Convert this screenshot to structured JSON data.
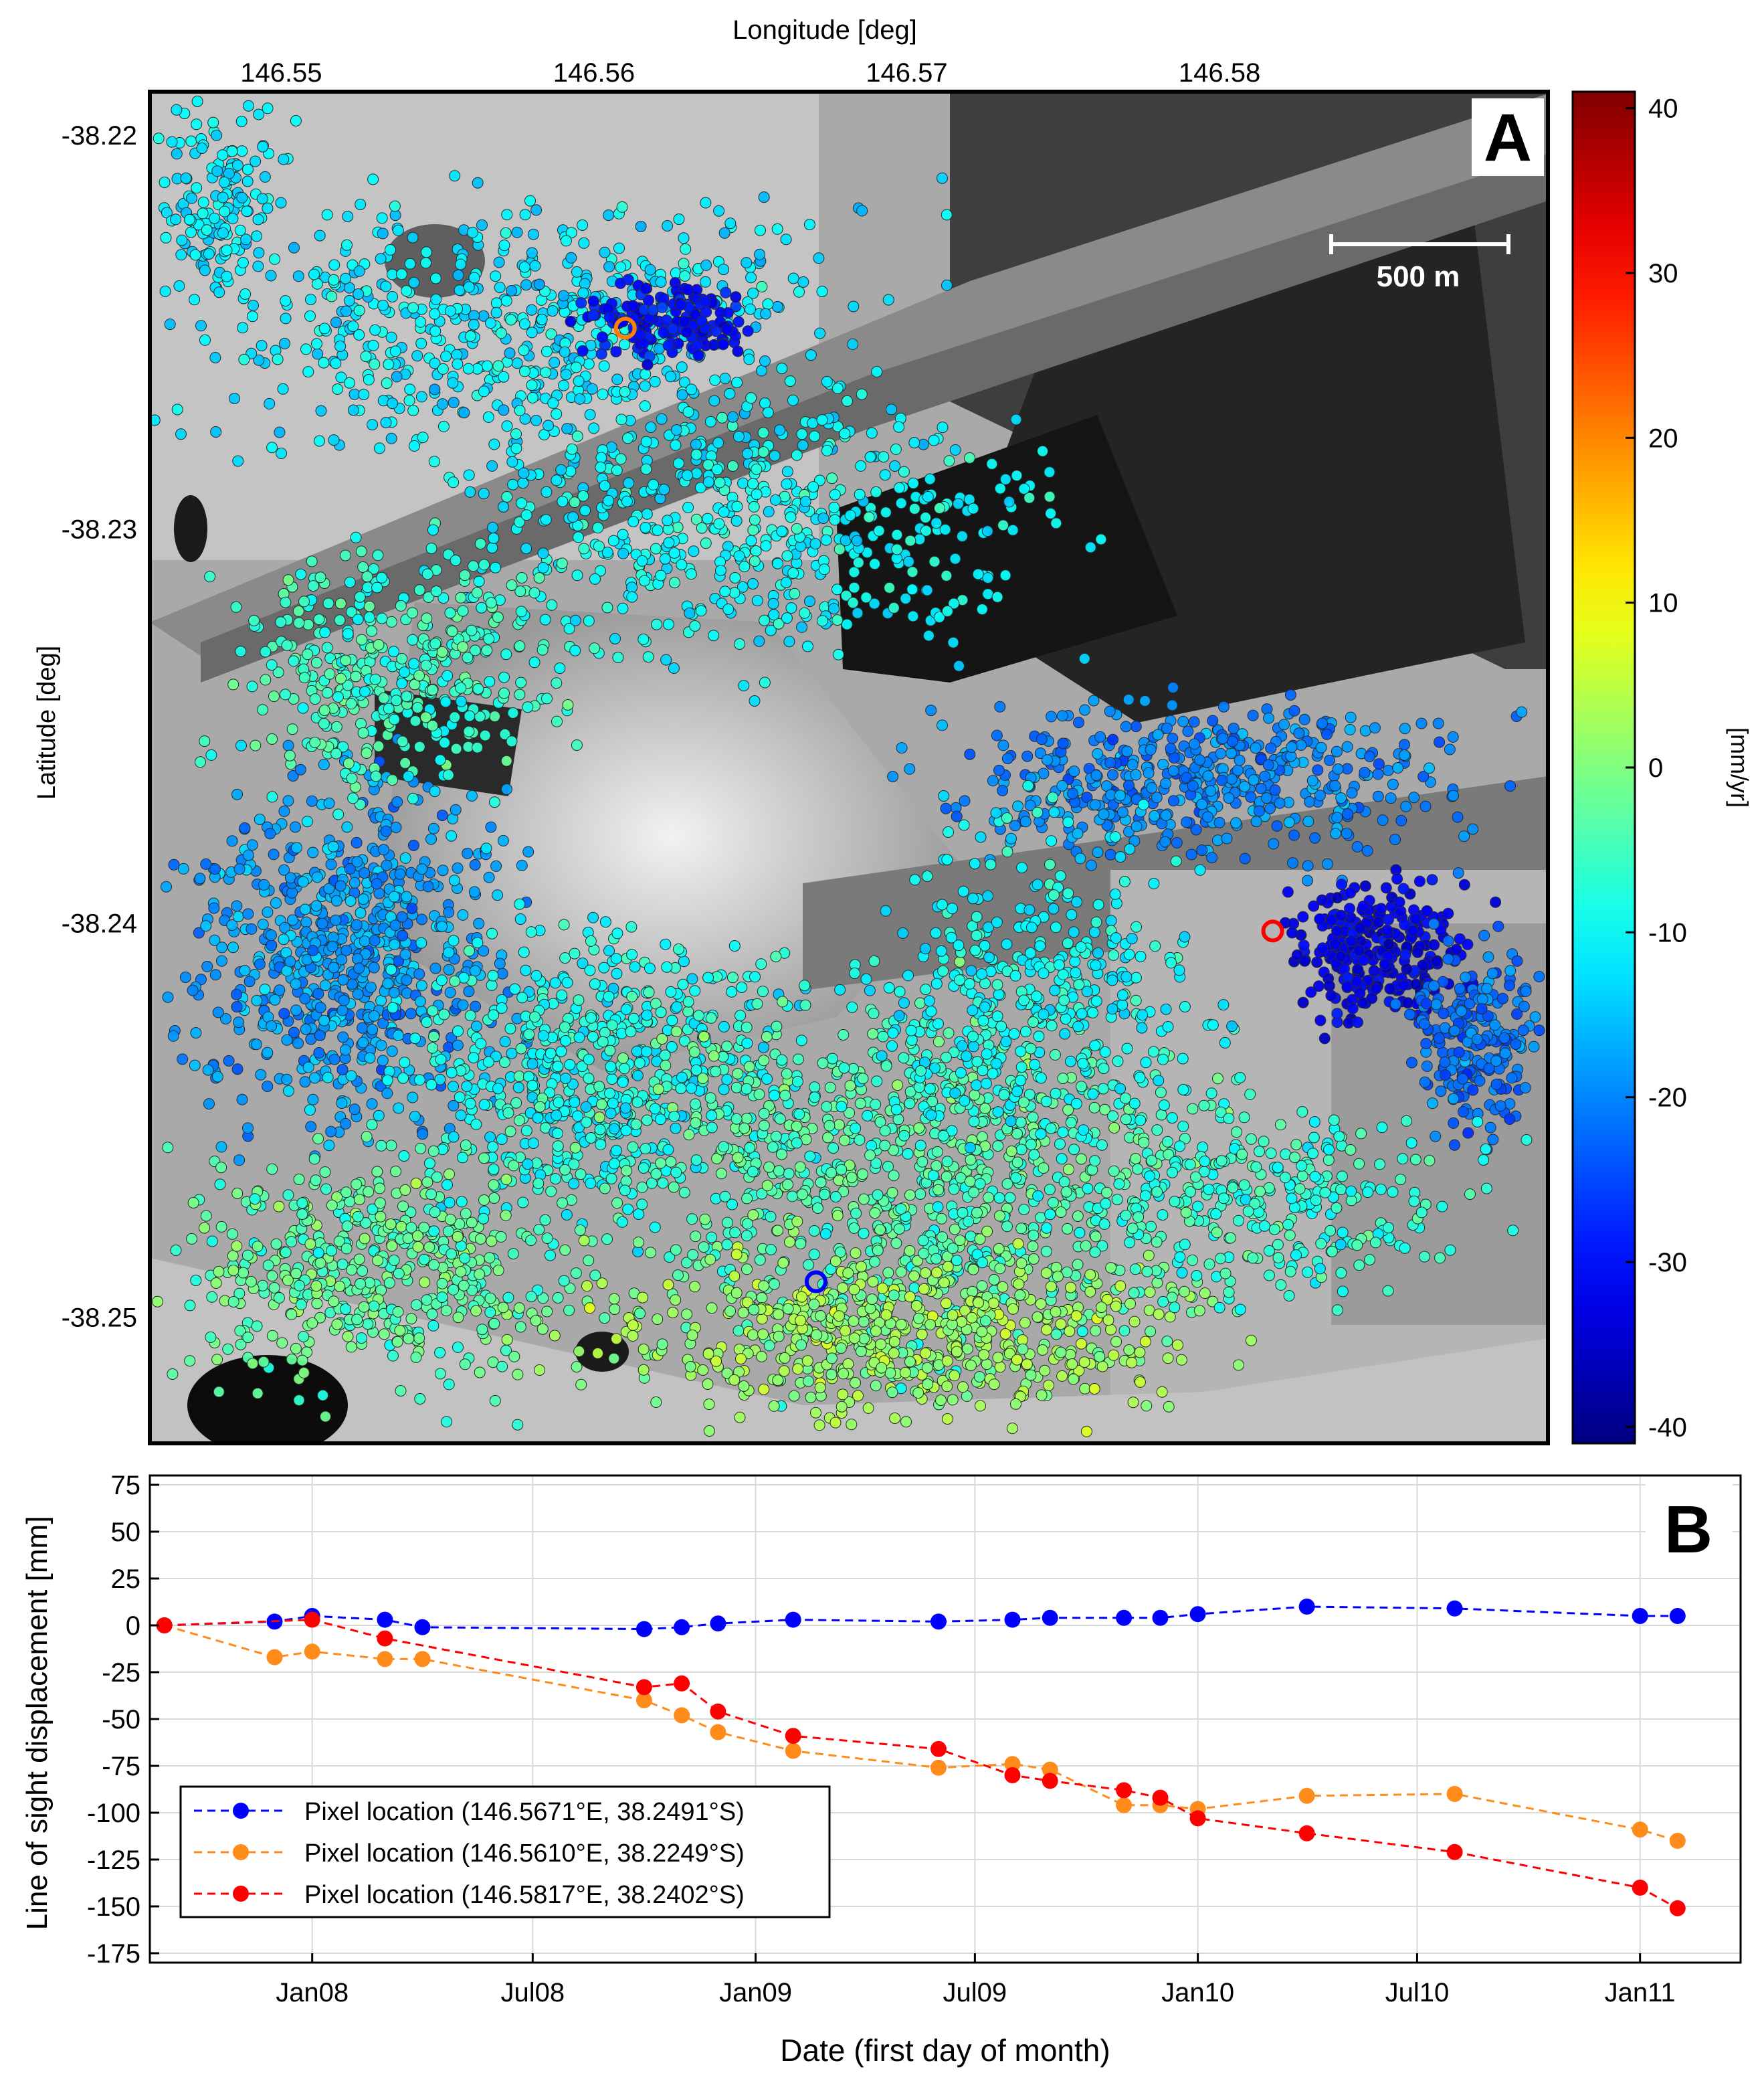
{
  "panel_a": {
    "panel_label": "A",
    "xlabel": "Longitude  [deg]",
    "ylabel": "Latitude  [deg]",
    "x_ticks": [
      "146.55",
      "146.56",
      "146.57",
      "146.58"
    ],
    "x_tick_values": [
      146.55,
      146.56,
      146.57,
      146.58
    ],
    "y_ticks": [
      "-38.22",
      "-38.23",
      "-38.24",
      "-38.25"
    ],
    "y_tick_values": [
      -38.22,
      -38.23,
      -38.24,
      -38.25
    ],
    "xlim": [
      146.5458,
      146.5905
    ],
    "ylim": [
      -38.2532,
      -38.2189
    ],
    "scale_bar_label": "500 m",
    "colorbar": {
      "label": "[mm/yr]",
      "ticks": [
        "40",
        "30",
        "20",
        "10",
        "0",
        "-10",
        "-20",
        "-30",
        "-40"
      ],
      "tick_values": [
        40,
        30,
        20,
        10,
        0,
        -10,
        -20,
        -30,
        -40
      ],
      "range": [
        -41,
        41
      ],
      "colormap": [
        "#00008f",
        "#0000ff",
        "#00ffff",
        "#00ff80",
        "#ffff00",
        "#ff8000",
        "#ff0000",
        "#800000"
      ]
    },
    "marked_pixels": [
      {
        "lon": 146.5671,
        "lat": -38.2491,
        "color": "#0000ff"
      },
      {
        "lon": 146.561,
        "lat": -38.2249,
        "color": "#ff8000"
      },
      {
        "lon": 146.5817,
        "lat": -38.2402,
        "color": "#ff0000"
      }
    ]
  },
  "panel_b": {
    "panel_label": "B",
    "xlabel": "Date (first day of month)",
    "ylabel": "Line of sight displacement [mm]",
    "x_ticks": [
      "Jan08",
      "Jul08",
      "Jan09",
      "Jul09",
      "Jan10",
      "Jul10",
      "Jan11"
    ],
    "x_tick_values": [
      "2008-01-01",
      "2008-07-01",
      "2009-01-01",
      "2009-07-01",
      "2010-01-01",
      "2010-07-01",
      "2011-01-01"
    ],
    "y_ticks": [
      "75",
      "50",
      "25",
      "0",
      "-25",
      "-50",
      "-75",
      "-100",
      "-125",
      "-150",
      "-175"
    ],
    "y_tick_values": [
      75,
      50,
      25,
      0,
      -25,
      -50,
      -75,
      -100,
      -125,
      -150,
      -175
    ],
    "xlim": [
      "2007-08-20",
      "2011-03-25"
    ],
    "ylim": [
      -180,
      80
    ],
    "grid": true,
    "legend_position": "bottom-left"
  },
  "chart_data": [
    {
      "type": "scatter",
      "title": "",
      "xlabel": "Longitude  [deg]",
      "ylabel": "Latitude  [deg]",
      "xlim": [
        146.5458,
        146.5905
      ],
      "ylim": [
        -38.2532,
        -38.2189
      ],
      "color_variable": "[mm/yr]",
      "color_range": [
        -41,
        41
      ],
      "highlighted_points": [
        {
          "x": 146.5671,
          "y": -38.2491
        },
        {
          "x": 146.561,
          "y": -38.2249
        },
        {
          "x": 146.5817,
          "y": -38.2402
        }
      ]
    },
    {
      "type": "line",
      "title": "",
      "xlabel": "Date (first day of month)",
      "ylabel": "Line of sight displacement [mm]",
      "ylim": [
        -180,
        80
      ],
      "grid": true,
      "legend": "bottom-left",
      "series": [
        {
          "name": "Pixel location (146.5671°E, 38.2491°S)",
          "color": "#0000ff",
          "x": [
            "2007-09-01",
            "2007-12-01",
            "2008-01-01",
            "2008-03-01",
            "2008-04-01",
            "2008-10-01",
            "2008-11-01",
            "2008-12-01",
            "2009-02-01",
            "2009-06-01",
            "2009-08-01",
            "2009-09-01",
            "2009-11-01",
            "2009-12-01",
            "2010-01-01",
            "2010-04-01",
            "2010-08-01",
            "2011-01-01",
            "2011-02-01"
          ],
          "y": [
            0,
            2,
            5,
            3,
            -1,
            -2,
            -1,
            1,
            3,
            2,
            3,
            4,
            4,
            4,
            6,
            10,
            9,
            5,
            5
          ]
        },
        {
          "name": "Pixel location (146.5610°E, 38.2249°S)",
          "color": "#ff8c1a",
          "x": [
            "2007-09-01",
            "2007-12-01",
            "2008-01-01",
            "2008-03-01",
            "2008-04-01",
            "2008-10-01",
            "2008-11-01",
            "2008-12-01",
            "2009-02-01",
            "2009-06-01",
            "2009-08-01",
            "2009-09-01",
            "2009-11-01",
            "2009-12-01",
            "2010-01-01",
            "2010-04-01",
            "2010-08-01",
            "2011-01-01",
            "2011-02-01"
          ],
          "y": [
            0,
            -17,
            -14,
            -18,
            -18,
            -40,
            -48,
            -57,
            -67,
            -76,
            -74,
            -77,
            -96,
            -96,
            -98,
            -91,
            -90,
            -109,
            -115
          ]
        },
        {
          "name": "Pixel location (146.5817°E, 38.2402°S)",
          "color": "#ff0000",
          "x": [
            "2007-09-01",
            "2008-01-01",
            "2008-03-01",
            "2008-10-01",
            "2008-11-01",
            "2008-12-01",
            "2009-02-01",
            "2009-06-01",
            "2009-08-01",
            "2009-09-01",
            "2009-11-01",
            "2009-12-01",
            "2010-01-01",
            "2010-04-01",
            "2010-08-01",
            "2011-01-01",
            "2011-02-01"
          ],
          "y": [
            0,
            3,
            -7,
            -33,
            -31,
            -46,
            -59,
            -66,
            -80,
            -83,
            -88,
            -92,
            -103,
            -111,
            -121,
            -140,
            -151
          ]
        }
      ]
    }
  ]
}
